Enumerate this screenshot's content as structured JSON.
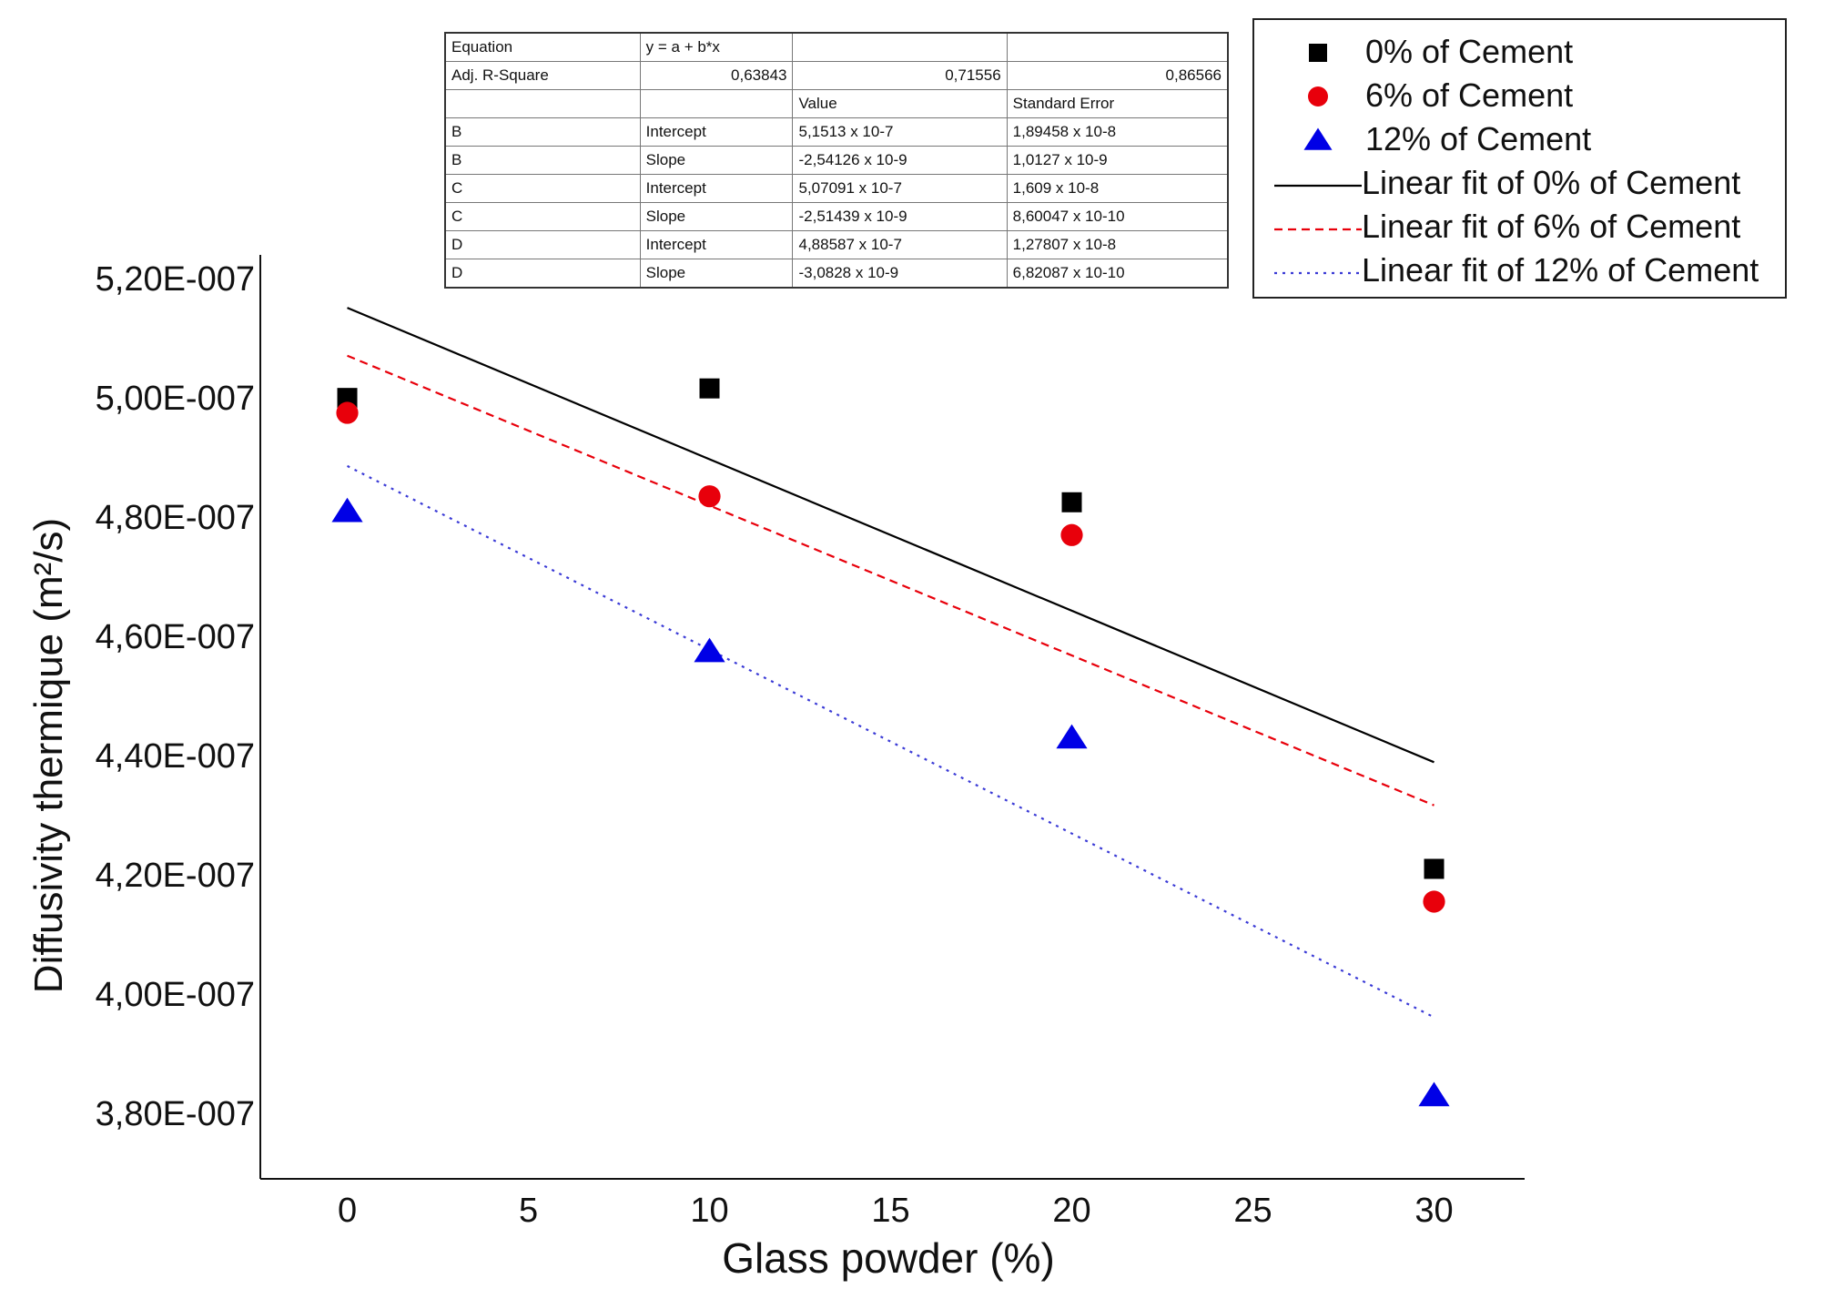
{
  "chart_data": {
    "type": "scatter",
    "title": "",
    "xlabel": "Glass powder (%)",
    "ylabel": "Diffusivity thermique (m²/s)",
    "xlim": [
      -2.4,
      32.5
    ],
    "ylim": [
      3.69e-07,
      5.24e-07
    ],
    "x_ticks": [
      0,
      5,
      10,
      15,
      20,
      25,
      30
    ],
    "x_tick_labels": [
      "0",
      "5",
      "10",
      "15",
      "20",
      "25",
      "30"
    ],
    "y_ticks": [
      3.8e-07,
      4e-07,
      4.2e-07,
      4.4e-07,
      4.6e-07,
      4.8e-07,
      5e-07,
      5.2e-07
    ],
    "y_tick_labels": [
      "3,80E-007",
      "4,00E-007",
      "4,20E-007",
      "4,40E-007",
      "4,60E-007",
      "4,80E-007",
      "5,00E-007",
      "5,20E-007"
    ],
    "x": [
      0,
      10,
      20,
      30
    ],
    "series": [
      {
        "name": "0% of Cement",
        "marker": "square",
        "color": "#000000",
        "values": [
          5e-07,
          5.016e-07,
          4.825e-07,
          4.21e-07
        ]
      },
      {
        "name": "6% of Cement",
        "marker": "circle",
        "color": "#e8000b",
        "values": [
          4.975e-07,
          4.835e-07,
          4.77e-07,
          4.155e-07
        ]
      },
      {
        "name": "12% of Cement",
        "marker": "triangle",
        "color": "#0000e6",
        "values": [
          4.81e-07,
          4.575e-07,
          4.43e-07,
          3.83e-07
        ]
      }
    ],
    "fits": [
      {
        "name": "Linear fit of 0% of Cement",
        "intercept": 5.1513e-07,
        "slope": -2.54126e-09,
        "color": "#000000",
        "style": "solid"
      },
      {
        "name": "Linear fit of 6% of Cement",
        "intercept": 5.07091e-07,
        "slope": -2.51439e-09,
        "color": "#e8000b",
        "style": "dashed"
      },
      {
        "name": "Linear fit of 12% of Cement",
        "intercept": 4.88587e-07,
        "slope": -3.0828e-09,
        "color": "#3a3ad6",
        "style": "dotted"
      }
    ]
  },
  "stats_table": {
    "rows": [
      [
        "Equation",
        "y = a + b*x",
        "",
        ""
      ],
      [
        "Adj. R-Square",
        "0,63843",
        "0,71556",
        "0,86566"
      ],
      [
        "",
        "",
        "Value",
        "Standard Error"
      ],
      [
        "B",
        "Intercept",
        "5,1513 x 10-7",
        "1,89458 x 10-8"
      ],
      [
        "B",
        "Slope",
        "-2,54126 x 10-9",
        "1,0127 x 10-9"
      ],
      [
        "C",
        "Intercept",
        "5,07091 x 10-7",
        "1,609 x 10-8"
      ],
      [
        "C",
        "Slope",
        "-2,51439 x 10-9",
        "8,60047 x 10-10"
      ],
      [
        "D",
        "Intercept",
        "4,88587 x 10-7",
        "1,27807 x 10-8"
      ],
      [
        "D",
        "Slope",
        "-3,0828 x 10-9",
        "6,82087 x 10-10"
      ]
    ]
  },
  "legend": [
    {
      "label": "0% of Cement",
      "kind": "marker",
      "marker": "square",
      "color": "#000000"
    },
    {
      "label": "6% of Cement",
      "kind": "marker",
      "marker": "circle",
      "color": "#e8000b"
    },
    {
      "label": "12% of Cement",
      "kind": "marker",
      "marker": "triangle",
      "color": "#0000e6"
    },
    {
      "label": "Linear fit of 0% of Cement",
      "kind": "line",
      "style": "solid",
      "color": "#000000"
    },
    {
      "label": "Linear fit of 6% of Cement",
      "kind": "line",
      "style": "dashed",
      "color": "#e8000b"
    },
    {
      "label": "Linear fit of 12% of Cement",
      "kind": "line",
      "style": "dotted",
      "color": "#3a3ad6"
    }
  ]
}
